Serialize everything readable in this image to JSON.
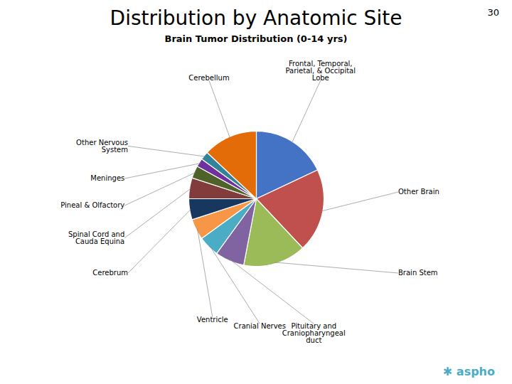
{
  "chart_data": {
    "type": "pie",
    "title": "Distribution by Anatomic Site",
    "subtitle": "Brain Tumor Distribution (0-14 yrs)",
    "categories": [
      "Frontal, Temporal,\nParietal, & Occipital\nLobe",
      "Other Brain",
      "Brain Stem",
      "Pituitary and\nCraniopharyngeal\nduct",
      "Cranial Nerves",
      "Ventricle",
      "Cerebrum",
      "Spinal Cord and\nCauda Equina",
      "Pineal & Olfactory",
      "Meninges",
      "Other Nervous\nSystem",
      "Cerebellum"
    ],
    "values": [
      18,
      20,
      15,
      7,
      5,
      5,
      5,
      5,
      3,
      2,
      2,
      13
    ],
    "colors": [
      "#4472C4",
      "#C0504D",
      "#9BBB59",
      "#8064A2",
      "#4BACC6",
      "#F79646",
      "#17375E",
      "#833C3C",
      "#4F6228",
      "#7030A0",
      "#31849B",
      "#E36C09"
    ],
    "annotations": [
      "30",
      "✱ aspho"
    ]
  }
}
